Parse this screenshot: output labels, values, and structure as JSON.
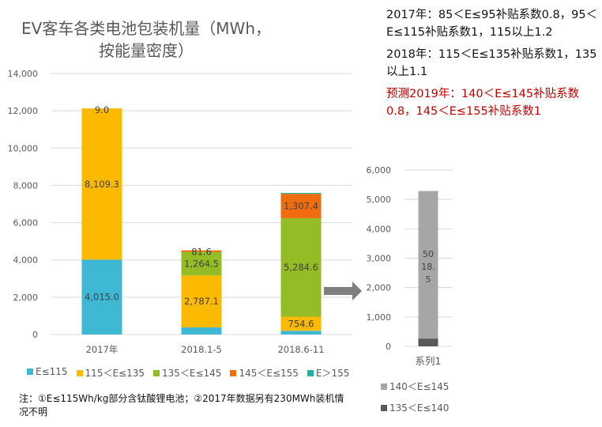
{
  "title": "EV客车各类电池包装机量（MWh，按能量密度）",
  "notes": [
    {
      "text": "2017年：85＜E≤95补贴系数0.8，95＜E≤115补贴系数1，115以上1.2",
      "color": "#111111"
    },
    {
      "text": "2018年：115＜E≤135补贴系数1，135以上1.1",
      "color": "#111111"
    },
    {
      "text": "预测2019年：140＜E≤145补贴系数0.8，145＜E≤155补贴系数1",
      "color": "#c00000"
    }
  ],
  "footnote": "注：①E≤115Wh/kg部分含钛酸锂电池；②2017年数据另有230MWh装机情况不明",
  "chart_data": [
    {
      "type": "bar",
      "stacked": true,
      "categories": [
        "2017年",
        "2018.1-5",
        "2018.6-11"
      ],
      "ylim": [
        0,
        14000
      ],
      "yticks": [
        "0",
        "2,000",
        "4,000",
        "6,000",
        "8,000",
        "10,000",
        "12,000",
        "14,000"
      ],
      "grid": true,
      "legend_position": "bottom",
      "series": [
        {
          "name": "E≤115",
          "color": "#3fb8d4",
          "values": [
            4015.0,
            380,
            200
          ],
          "labels": [
            "4,015.0",
            "",
            ""
          ]
        },
        {
          "name": "115＜E≤135",
          "color": "#fbb900",
          "values": [
            8109.3,
            2787.1,
            754.6
          ],
          "labels": [
            "8,109.3",
            "2,787.1",
            "754.6"
          ]
        },
        {
          "name": "135＜E≤145",
          "color": "#93bc25",
          "values": [
            9.0,
            1264.5,
            5284.6
          ],
          "labels": [
            "9.0",
            "1,264.5",
            "5,284.6"
          ]
        },
        {
          "name": "145＜E≤155",
          "color": "#ef6c0f",
          "values": [
            0,
            81.6,
            1307.4
          ],
          "labels": [
            "",
            "81.6",
            "1,307.4"
          ]
        },
        {
          "name": "E＞155",
          "color": "#22b0a0",
          "values": [
            0,
            0,
            50
          ],
          "labels": [
            "",
            "",
            ""
          ]
        }
      ]
    },
    {
      "type": "bar",
      "stacked": true,
      "categories": [
        "系列1"
      ],
      "ylim": [
        0,
        6000
      ],
      "yticks": [
        "0",
        "1,000",
        "2,000",
        "3,000",
        "4,000",
        "5,000",
        "6,000"
      ],
      "grid": true,
      "legend_position": "bottom",
      "series": [
        {
          "name": "135＜E≤140",
          "color": "#595959",
          "values": [
            266.1
          ],
          "labels": [
            ""
          ]
        },
        {
          "name": "140＜E≤145",
          "color": "#a6a6a6",
          "values": [
            5018.5
          ],
          "labels": [
            "5018.5"
          ]
        }
      ]
    }
  ]
}
